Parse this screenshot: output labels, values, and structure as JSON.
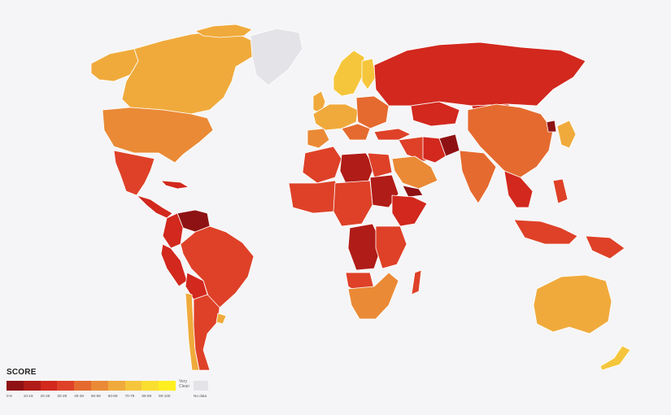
{
  "legend": {
    "title": "SCORE",
    "left_label": "",
    "right_label_1": "Very",
    "right_label_2": "Clean",
    "bins": [
      "0-9",
      "10-19",
      "20-29",
      "30-39",
      "40-49",
      "50-59",
      "60-69",
      "70-79",
      "80-89",
      "90-100"
    ],
    "colors": [
      "#8e1214",
      "#b01c18",
      "#d2281e",
      "#de4128",
      "#e56a2f",
      "#ea8a36",
      "#f0aa3c",
      "#f5c63c",
      "#fade30",
      "#ffef20"
    ],
    "no_data_label": "No data",
    "no_data_color": "#e4e4e8"
  },
  "map_colors": {
    "very_low": "#8e1214",
    "low": "#b01c18",
    "mid_low": "#d2281e",
    "mid": "#de4128",
    "mid_high": "#e56a2f",
    "high": "#ea8a36",
    "higher": "#f0aa3c",
    "clean": "#f5c63c",
    "no_data": "#e4e4e8"
  }
}
